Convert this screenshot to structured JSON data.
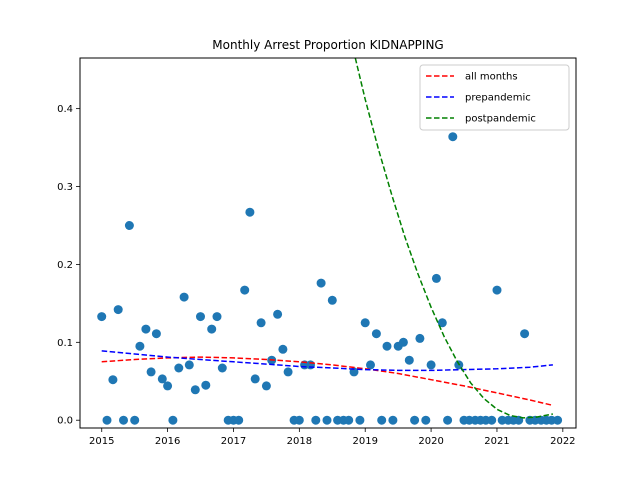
{
  "chart_data": {
    "type": "scatter",
    "title": "Monthly Arrest Proportion KIDNAPPING",
    "xlabel": "",
    "ylabel": "",
    "xlim": [
      2014.67,
      2022.2
    ],
    "ylim": [
      -0.01,
      0.465
    ],
    "x_ticks": [
      2015,
      2016,
      2017,
      2018,
      2019,
      2020,
      2021,
      2022
    ],
    "y_ticks": [
      0.0,
      0.1,
      0.2,
      0.3,
      0.4
    ],
    "y_tick_labels": [
      "0.0",
      "0.1",
      "0.2",
      "0.3",
      "0.4"
    ],
    "grid": false,
    "legend_position": "top-right",
    "scatter": {
      "color": "#1f77b4",
      "points": [
        [
          2015.0,
          0.133
        ],
        [
          2015.08,
          0.0
        ],
        [
          2015.17,
          0.052
        ],
        [
          2015.25,
          0.142
        ],
        [
          2015.33,
          0.0
        ],
        [
          2015.42,
          0.25
        ],
        [
          2015.5,
          0.0
        ],
        [
          2015.58,
          0.095
        ],
        [
          2015.67,
          0.117
        ],
        [
          2015.75,
          0.062
        ],
        [
          2015.83,
          0.111
        ],
        [
          2015.92,
          0.053
        ],
        [
          2016.0,
          0.044
        ],
        [
          2016.08,
          0.0
        ],
        [
          2016.17,
          0.067
        ],
        [
          2016.25,
          0.158
        ],
        [
          2016.33,
          0.071
        ],
        [
          2016.42,
          0.039
        ],
        [
          2016.5,
          0.133
        ],
        [
          2016.58,
          0.045
        ],
        [
          2016.67,
          0.117
        ],
        [
          2016.75,
          0.133
        ],
        [
          2016.83,
          0.067
        ],
        [
          2016.92,
          0.0
        ],
        [
          2017.0,
          0.0
        ],
        [
          2017.08,
          0.0
        ],
        [
          2017.17,
          0.167
        ],
        [
          2017.25,
          0.267
        ],
        [
          2017.33,
          0.053
        ],
        [
          2017.42,
          0.125
        ],
        [
          2017.5,
          0.044
        ],
        [
          2017.58,
          0.077
        ],
        [
          2017.67,
          0.136
        ],
        [
          2017.75,
          0.091
        ],
        [
          2017.83,
          0.062
        ],
        [
          2017.92,
          0.0
        ],
        [
          2018.0,
          0.0
        ],
        [
          2018.08,
          0.071
        ],
        [
          2018.17,
          0.071
        ],
        [
          2018.25,
          0.0
        ],
        [
          2018.33,
          0.176
        ],
        [
          2018.42,
          0.0
        ],
        [
          2018.5,
          0.154
        ],
        [
          2018.58,
          0.0
        ],
        [
          2018.67,
          0.0
        ],
        [
          2018.75,
          0.0
        ],
        [
          2018.83,
          0.062
        ],
        [
          2018.92,
          0.0
        ],
        [
          2019.0,
          0.125
        ],
        [
          2019.08,
          0.071
        ],
        [
          2019.17,
          0.111
        ],
        [
          2019.25,
          0.0
        ],
        [
          2019.33,
          0.095
        ],
        [
          2019.42,
          0.0
        ],
        [
          2019.5,
          0.095
        ],
        [
          2019.58,
          0.1
        ],
        [
          2019.67,
          0.077
        ],
        [
          2019.75,
          0.0
        ],
        [
          2019.83,
          0.105
        ],
        [
          2019.92,
          0.0
        ],
        [
          2020.0,
          0.071
        ],
        [
          2020.08,
          0.182
        ],
        [
          2020.17,
          0.125
        ],
        [
          2020.25,
          0.0
        ],
        [
          2020.33,
          0.364
        ],
        [
          2020.42,
          0.071
        ],
        [
          2020.5,
          0.0
        ],
        [
          2020.58,
          0.0
        ],
        [
          2020.67,
          0.0
        ],
        [
          2020.75,
          0.0
        ],
        [
          2020.83,
          0.0
        ],
        [
          2020.92,
          0.0
        ],
        [
          2021.0,
          0.167
        ],
        [
          2021.08,
          0.0
        ],
        [
          2021.17,
          0.0
        ],
        [
          2021.25,
          0.0
        ],
        [
          2021.33,
          0.0
        ],
        [
          2021.42,
          0.111
        ],
        [
          2021.5,
          0.0
        ],
        [
          2021.58,
          0.0
        ],
        [
          2021.67,
          0.0
        ],
        [
          2021.75,
          0.0
        ],
        [
          2021.83,
          0.0
        ],
        [
          2021.92,
          0.0
        ]
      ]
    },
    "series": [
      {
        "name": "all months",
        "color": "#ff0000",
        "style": "dashed",
        "x": [
          2015.0,
          2015.5,
          2016.0,
          2016.5,
          2017.0,
          2017.5,
          2018.0,
          2018.5,
          2019.0,
          2019.5,
          2020.0,
          2020.5,
          2021.0,
          2021.5,
          2021.85
        ],
        "y": [
          0.075,
          0.078,
          0.08,
          0.081,
          0.08,
          0.078,
          0.075,
          0.071,
          0.066,
          0.06,
          0.052,
          0.044,
          0.035,
          0.026,
          0.019
        ]
      },
      {
        "name": "prepandemic",
        "color": "#0000ff",
        "style": "dashed",
        "x": [
          2015.0,
          2015.5,
          2016.0,
          2016.5,
          2017.0,
          2017.5,
          2018.0,
          2018.5,
          2019.0,
          2019.5,
          2020.0,
          2020.5,
          2021.0,
          2021.5,
          2021.85
        ],
        "y": [
          0.089,
          0.085,
          0.081,
          0.078,
          0.075,
          0.072,
          0.069,
          0.067,
          0.065,
          0.064,
          0.064,
          0.065,
          0.066,
          0.068,
          0.071
        ]
      },
      {
        "name": "postpandemic",
        "color": "#008000",
        "style": "dashed",
        "x": [
          2018.85,
          2019.0,
          2019.2,
          2019.4,
          2019.6,
          2019.8,
          2020.0,
          2020.2,
          2020.4,
          2020.6,
          2020.8,
          2021.0,
          2021.2,
          2021.4,
          2021.6,
          2021.85
        ],
        "y": [
          0.465,
          0.412,
          0.348,
          0.29,
          0.236,
          0.188,
          0.145,
          0.107,
          0.075,
          0.048,
          0.028,
          0.014,
          0.006,
          0.003,
          0.004,
          0.008
        ]
      }
    ]
  }
}
